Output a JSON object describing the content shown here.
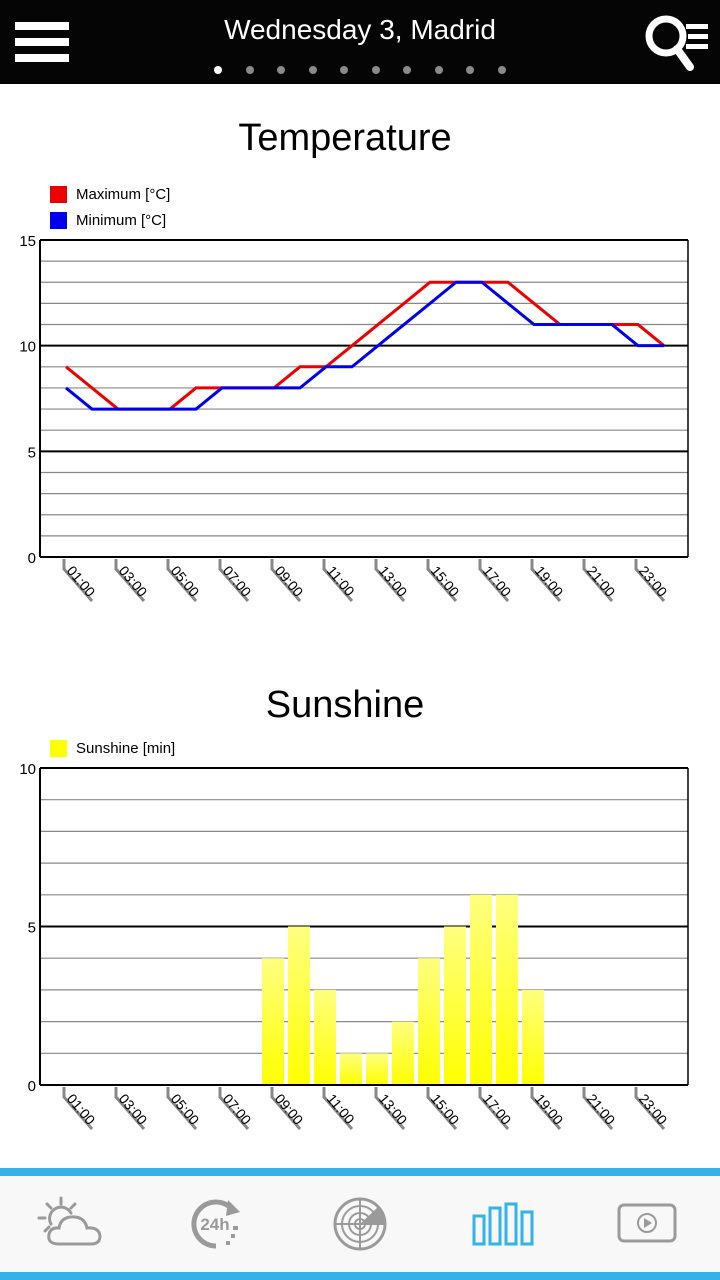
{
  "header": {
    "title": "Wednesday 3, Madrid",
    "page_dots": 10,
    "active_dot": 0,
    "menu_icon": "hamburger-menu-icon",
    "search_icon": "search-list-icon"
  },
  "temperature": {
    "title": "Temperature",
    "legend": [
      {
        "label": "Maximum [°C]",
        "color": "#ee0000"
      },
      {
        "label": "Minimum [°C]",
        "color": "#0000ee"
      }
    ],
    "y_ticks": [
      "15",
      "10",
      "5",
      "0"
    ],
    "x_labels": [
      "01:00",
      "03:00",
      "05:00",
      "07:00",
      "09:00",
      "11:00",
      "13:00",
      "15:00",
      "17:00",
      "19:00",
      "21:00",
      "23:00"
    ]
  },
  "sunshine": {
    "title": "Sunshine",
    "legend": [
      {
        "label": "Sunshine [min]",
        "color": "#ffff00"
      }
    ],
    "y_ticks": [
      "10",
      "5",
      "0"
    ],
    "x_labels": [
      "01:00",
      "03:00",
      "05:00",
      "07:00",
      "09:00",
      "11:00",
      "13:00",
      "15:00",
      "17:00",
      "19:00",
      "21:00",
      "23:00"
    ]
  },
  "bottom_nav": {
    "items": [
      {
        "name": "forecast",
        "icon": "sun-cloud-icon",
        "active": false
      },
      {
        "name": "24h",
        "icon": "24h-icon",
        "label": "24h",
        "active": false
      },
      {
        "name": "radar",
        "icon": "radar-icon",
        "active": false
      },
      {
        "name": "charts",
        "icon": "bar-chart-icon",
        "active": true
      },
      {
        "name": "video",
        "icon": "video-play-icon",
        "active": false
      }
    ],
    "accent_color": "#35b2e8",
    "inactive_color": "#9a9a9a"
  },
  "chart_data": [
    {
      "type": "line",
      "title": "Temperature",
      "xlabel": "",
      "ylabel": "°C",
      "ylim": [
        0,
        15
      ],
      "grid": true,
      "legend_position": "top-left",
      "x": [
        "01:00",
        "02:00",
        "03:00",
        "04:00",
        "05:00",
        "06:00",
        "07:00",
        "08:00",
        "09:00",
        "10:00",
        "11:00",
        "12:00",
        "13:00",
        "14:00",
        "15:00",
        "16:00",
        "17:00",
        "18:00",
        "19:00",
        "20:00",
        "21:00",
        "22:00",
        "23:00",
        "24:00"
      ],
      "series": [
        {
          "name": "Maximum [°C]",
          "color": "#ee0000",
          "values": [
            9,
            8,
            7,
            7,
            7,
            8,
            8,
            8,
            8,
            9,
            9,
            10,
            11,
            12,
            13,
            13,
            13,
            13,
            12,
            11,
            11,
            11,
            11,
            10
          ]
        },
        {
          "name": "Minimum [°C]",
          "color": "#0000ee",
          "values": [
            8,
            7,
            7,
            7,
            7,
            7,
            8,
            8,
            8,
            8,
            9,
            9,
            10,
            11,
            12,
            13,
            13,
            12,
            11,
            11,
            11,
            11,
            10,
            10
          ]
        }
      ]
    },
    {
      "type": "bar",
      "title": "Sunshine",
      "xlabel": "",
      "ylabel": "min",
      "ylim": [
        0,
        10
      ],
      "grid": true,
      "legend_position": "top-left",
      "categories": [
        "01:00",
        "02:00",
        "03:00",
        "04:00",
        "05:00",
        "06:00",
        "07:00",
        "08:00",
        "09:00",
        "10:00",
        "11:00",
        "12:00",
        "13:00",
        "14:00",
        "15:00",
        "16:00",
        "17:00",
        "18:00",
        "19:00",
        "20:00",
        "21:00",
        "22:00",
        "23:00",
        "24:00"
      ],
      "series": [
        {
          "name": "Sunshine [min]",
          "color": "#ffff00",
          "values": [
            0,
            0,
            0,
            0,
            0,
            0,
            0,
            0,
            4,
            5,
            3,
            1,
            1,
            2,
            4,
            5,
            6,
            6,
            3,
            0,
            0,
            0,
            0,
            0
          ]
        }
      ]
    }
  ]
}
